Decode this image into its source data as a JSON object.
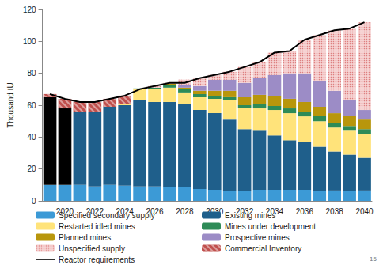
{
  "chart_data": {
    "type": "bar",
    "y_label": "Thousand tU",
    "annotation": "15",
    "categories": [
      null,
      "2020",
      null,
      "2022",
      null,
      "2024",
      null,
      "2026",
      null,
      "2028",
      null,
      "2030",
      null,
      "2032",
      null,
      "2034",
      null,
      "2036",
      null,
      "2038",
      null,
      "2040"
    ],
    "ylim": [
      0,
      120
    ],
    "yticks": [
      0,
      20,
      40,
      60,
      80,
      100,
      120
    ],
    "stacked": true,
    "grid": false,
    "legend": "bottom",
    "series": [
      {
        "name": "Specified secondary supply",
        "color": "#3c9ad6",
        "values": [
          10,
          10,
          10,
          9,
          10,
          9.5,
          9,
          9,
          8.5,
          8.5,
          7.5,
          7,
          6.5,
          6.5,
          7,
          7,
          7,
          7,
          6.5,
          6.5,
          6.5,
          6.5
        ]
      },
      {
        "name": "Existing mines",
        "color": "#1f5f8b",
        "colors": [
          "#000000",
          "#000000",
          "#1f5f8b",
          "#1f5f8b",
          "#1f5f8b",
          "#1f5f8b",
          "#1f5f8b",
          "#1f5f8b",
          "#1f5f8b",
          "#1f5f8b",
          "#1f5f8b",
          "#1f5f8b",
          "#1f5f8b",
          "#1f5f8b",
          "#1f5f8b",
          "#1f5f8b",
          "#1f5f8b",
          "#1f5f8b",
          "#1f5f8b",
          "#1f5f8b",
          "#1f5f8b",
          "#1f5f8b"
        ],
        "values": [
          55,
          48,
          46,
          47,
          49,
          50.5,
          54,
          53,
          53.5,
          52.5,
          49.5,
          48,
          44.5,
          38.5,
          37,
          34,
          31,
          30,
          27.5,
          24.5,
          22.5,
          20.5
        ]
      },
      {
        "name": "Restarted idled mines",
        "color": "#ffe37a",
        "values": [
          0,
          0,
          0,
          0,
          0,
          1,
          7,
          8,
          9,
          7,
          8,
          9,
          12,
          13,
          14,
          16,
          17,
          16,
          16,
          15,
          15,
          15
        ]
      },
      {
        "name": "Mines under development",
        "color": "#2e8b57",
        "values": [
          0,
          0,
          0,
          0,
          0,
          0,
          0.5,
          1,
          1.5,
          2,
          2,
          2,
          2,
          2,
          2.5,
          2.5,
          3,
          3,
          3,
          3,
          3,
          3
        ]
      },
      {
        "name": "Planned mines",
        "color": "#b8960c",
        "values": [
          0,
          0,
          0,
          0,
          0,
          0,
          0,
          0,
          1,
          1,
          2,
          3,
          4,
          5,
          6,
          6,
          6,
          6,
          6,
          6,
          6,
          6
        ]
      },
      {
        "name": "Prospective mines",
        "color": "#9c8cc6",
        "values": [
          0,
          0,
          0,
          0,
          0,
          0,
          0,
          0,
          0,
          2,
          3,
          7,
          7,
          9,
          10.5,
          13.5,
          16,
          18,
          16,
          14,
          10,
          6
        ]
      },
      {
        "name": "Unspecified supply",
        "color": "#f6d3d3",
        "values": [
          0,
          0,
          0,
          0,
          0,
          0,
          0,
          1,
          0.5,
          3,
          5,
          3,
          5,
          10,
          10,
          14,
          14,
          21,
          29,
          38,
          45,
          55
        ]
      },
      {
        "name": "Commercial Inventory",
        "color": "#c0504d",
        "values": [
          2,
          6,
          6,
          6,
          5,
          5,
          0,
          0,
          0,
          0,
          0,
          0,
          0,
          0,
          0,
          0,
          0,
          0,
          0,
          0,
          0,
          0
        ]
      },
      {
        "name": "Reactor requirements",
        "color": "#000000",
        "type": "line",
        "values": [
          67,
          64,
          62,
          62,
          64,
          66,
          70,
          72,
          74,
          74,
          77,
          79,
          81,
          84,
          87,
          93,
          94,
          101,
          104,
          107,
          108,
          112
        ]
      }
    ]
  }
}
